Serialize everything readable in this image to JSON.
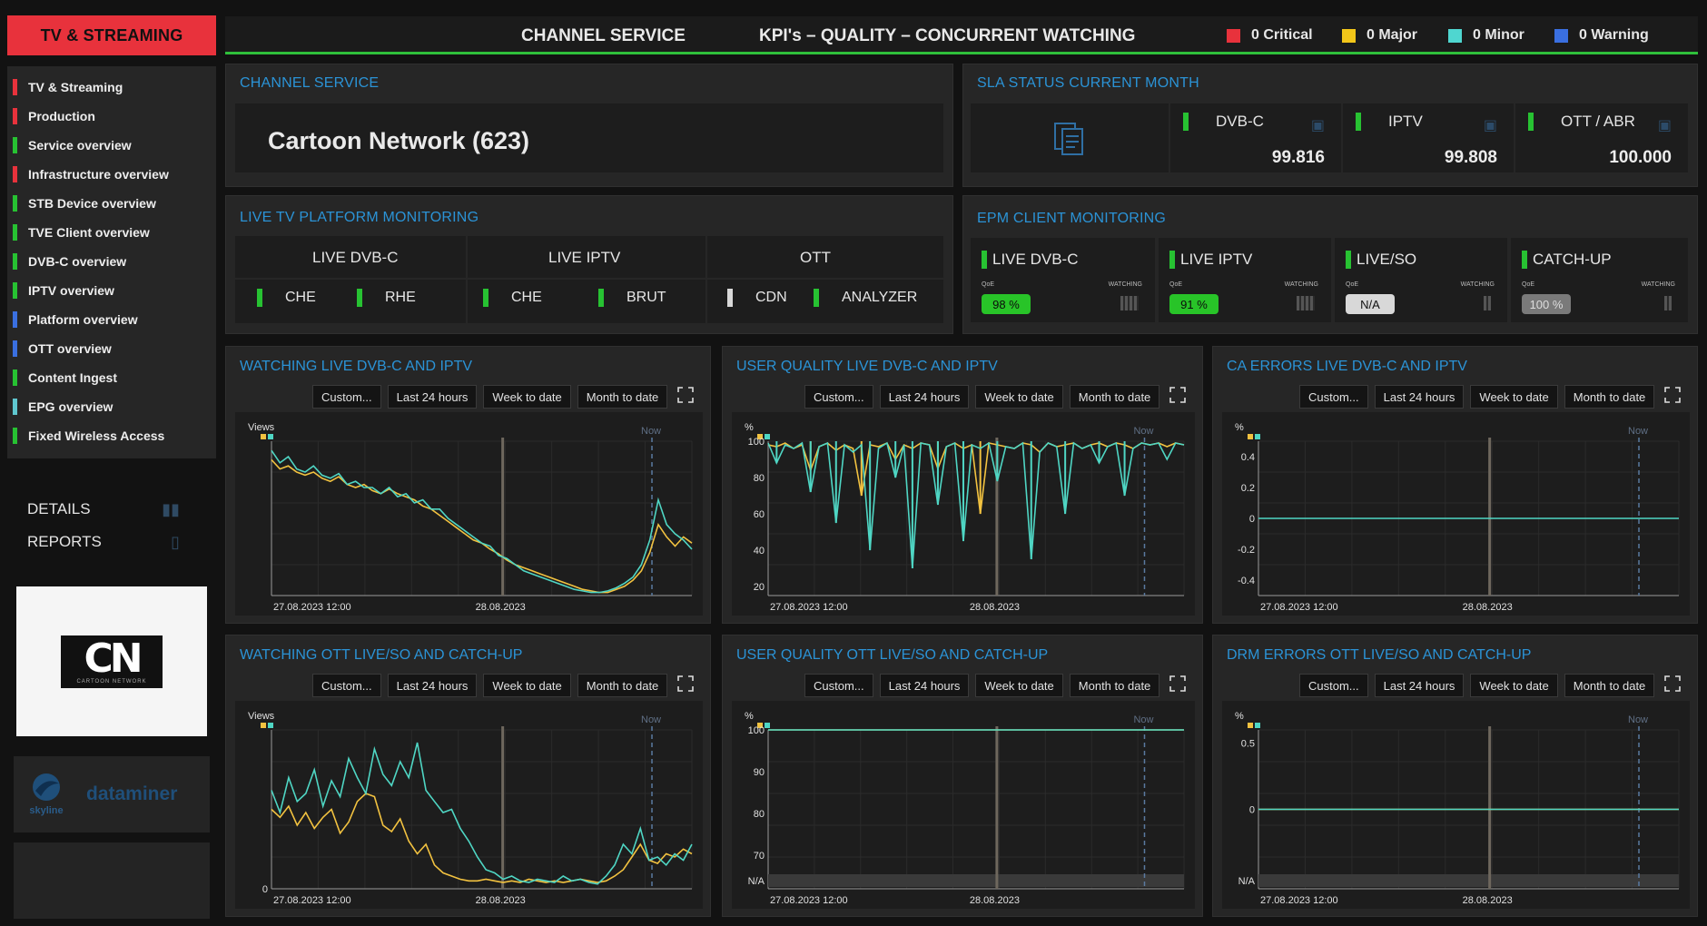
{
  "sidebar": {
    "header": "TV & STREAMING",
    "items": [
      {
        "label": "TV & Streaming",
        "color": "#e8323c"
      },
      {
        "label": "Production",
        "color": "#e8323c"
      },
      {
        "label": "Service overview",
        "color": "#27c232"
      },
      {
        "label": "Infrastructure overview",
        "color": "#e8323c"
      },
      {
        "label": "STB Device overview",
        "color": "#27c232"
      },
      {
        "label": "TVE Client overview",
        "color": "#27c232"
      },
      {
        "label": "DVB-C overview",
        "color": "#27c232"
      },
      {
        "label": "IPTV overview",
        "color": "#27c232"
      },
      {
        "label": "Platform overview",
        "color": "#3a6fe0"
      },
      {
        "label": "OTT overview",
        "color": "#3a6fe0"
      },
      {
        "label": "Content Ingest",
        "color": "#27c232"
      },
      {
        "label": "EPG overview",
        "color": "#5fc7cf"
      },
      {
        "label": "Fixed Wireless Access",
        "color": "#27c232"
      }
    ],
    "links": {
      "details": "DETAILS",
      "reports": "REPORTS"
    },
    "logo_text": "CN",
    "logo_sub": "CARTOON NETWORK",
    "brand": {
      "vendor": "skyline",
      "product": "dataminer"
    }
  },
  "topbar": {
    "title1": "CHANNEL SERVICE",
    "title2": "KPI's – QUALITY – CONCURRENT WATCHING",
    "alarms": [
      {
        "label": "0 Critical",
        "color": "#e8323c"
      },
      {
        "label": "0 Major",
        "color": "#f2c619"
      },
      {
        "label": "0 Minor",
        "color": "#4fd6d0"
      },
      {
        "label": "0 Warning",
        "color": "#3a6fe0"
      }
    ]
  },
  "channel_service": {
    "title": "CHANNEL SERVICE",
    "name": "Cartoon Network (623)"
  },
  "sla": {
    "title": "SLA STATUS CURRENT MONTH",
    "cols": [
      {
        "label": "DVB-C",
        "value": "99.816"
      },
      {
        "label": "IPTV",
        "value": "99.808"
      },
      {
        "label": "OTT / ABR",
        "value": "100.000"
      }
    ]
  },
  "live_tv": {
    "title": "LIVE TV PLATFORM MONITORING",
    "groups": [
      {
        "label": "LIVE DVB-C",
        "items": [
          {
            "label": "CHE",
            "color": "#27c232"
          },
          {
            "label": "RHE",
            "color": "#27c232"
          }
        ]
      },
      {
        "label": "LIVE IPTV",
        "items": [
          {
            "label": "CHE",
            "color": "#27c232"
          },
          {
            "label": "BRUT",
            "color": "#27c232"
          }
        ]
      },
      {
        "label": "OTT",
        "items": [
          {
            "label": "CDN",
            "color": "#d8d8d8"
          },
          {
            "label": "ANALYZER",
            "color": "#27c232"
          }
        ]
      }
    ]
  },
  "epm": {
    "title": "EPM CLIENT MONITORING",
    "qoe_label": "QoE",
    "watching_label": "WATCHING",
    "cells": [
      {
        "label": "LIVE DVB-C",
        "qoe": "98 %",
        "pill_bg": "#28c428",
        "pill_fg": "#0c0c0c"
      },
      {
        "label": "LIVE IPTV",
        "qoe": "91 %",
        "pill_bg": "#28c428",
        "pill_fg": "#0c0c0c"
      },
      {
        "label": "LIVE/SO",
        "qoe": "N/A",
        "pill_bg": "#d8d8d8",
        "pill_fg": "#111111"
      },
      {
        "label": "CATCH-UP",
        "qoe": "100 %",
        "pill_bg": "#7a7a7a",
        "pill_fg": "#dddddd"
      }
    ]
  },
  "buttons": [
    "Custom...",
    "Last 24 hours",
    "Week to date",
    "Month to date"
  ],
  "now_label": "Now",
  "chart_data": [
    {
      "title": "WATCHING LIVE DVB-C AND IPTV",
      "type": "line",
      "ylabel": "Views",
      "ylim": [
        0,
        100
      ],
      "yticks": [],
      "x_labels": [
        "27.08.2023 12:00",
        "28.08.2023"
      ],
      "series": [
        {
          "color": "#f2c240",
          "values": [
            88,
            82,
            84,
            80,
            78,
            80,
            76,
            74,
            77,
            72,
            70,
            72,
            68,
            66,
            69,
            66,
            64,
            62,
            58,
            56,
            52,
            48,
            44,
            40,
            36,
            34,
            30,
            27,
            23,
            20,
            18,
            16,
            14,
            12,
            10,
            8,
            6,
            4,
            3,
            2,
            2,
            4,
            6,
            10,
            16,
            28,
            46,
            38,
            32,
            38,
            34
          ]
        },
        {
          "color": "#4fd6c4",
          "values": [
            94,
            86,
            90,
            82,
            80,
            84,
            78,
            76,
            79,
            72,
            74,
            70,
            70,
            66,
            70,
            64,
            66,
            60,
            62,
            56,
            56,
            50,
            46,
            42,
            38,
            34,
            32,
            26,
            24,
            20,
            16,
            14,
            12,
            10,
            8,
            6,
            4,
            3,
            2,
            2,
            3,
            5,
            8,
            12,
            20,
            36,
            62,
            46,
            40,
            36,
            30
          ]
        }
      ]
    },
    {
      "title": "USER QUALITY LIVE DVB-C AND IPTV",
      "type": "line",
      "ylabel": "%",
      "ylim": [
        15,
        100
      ],
      "yticks": [
        100,
        80,
        60,
        40,
        20
      ],
      "x_labels": [
        "27.08.2023 12:00",
        "28.08.2023"
      ],
      "series": [
        {
          "color": "#f2c240",
          "values": [
            98,
            97,
            99,
            96,
            98,
            84,
            97,
            99,
            95,
            98,
            96,
            70,
            98,
            97,
            99,
            90,
            98,
            96,
            99,
            98,
            85,
            97,
            99,
            96,
            98,
            60,
            99,
            98,
            97,
            96,
            99,
            98,
            94,
            99,
            97,
            98,
            99,
            96,
            98,
            99,
            97,
            99,
            98,
            96,
            99,
            98,
            99,
            97,
            99,
            98
          ]
        },
        {
          "color": "#4fd6c4",
          "values": [
            99,
            88,
            98,
            96,
            99,
            72,
            97,
            99,
            55,
            98,
            94,
            98,
            40,
            96,
            99,
            80,
            98,
            30,
            99,
            98,
            65,
            97,
            99,
            45,
            98,
            96,
            99,
            78,
            97,
            96,
            99,
            35,
            94,
            99,
            97,
            60,
            99,
            96,
            98,
            88,
            97,
            99,
            70,
            96,
            99,
            98,
            99,
            90,
            99,
            98
          ]
        }
      ]
    },
    {
      "title": "CA ERRORS LIVE DVB-C AND IPTV",
      "type": "line",
      "ylabel": "%",
      "ylim": [
        -0.5,
        0.5
      ],
      "yticks": [
        0.4,
        0.2,
        0,
        -0.2,
        -0.4
      ],
      "x_labels": [
        "27.08.2023 12:00",
        "28.08.2023"
      ],
      "series": [
        {
          "color": "#4fd6c4",
          "values": [
            0,
            0,
            0,
            0,
            0,
            0,
            0,
            0,
            0,
            0,
            0,
            0,
            0,
            0,
            0,
            0,
            0,
            0,
            0,
            0,
            0,
            0,
            0,
            0,
            0,
            0,
            0,
            0,
            0,
            0,
            0,
            0,
            0,
            0,
            0,
            0,
            0,
            0,
            0,
            0,
            0,
            0,
            0,
            0,
            0,
            0,
            0,
            0,
            0,
            0
          ]
        }
      ]
    },
    {
      "title": "WATCHING OTT LIVE/SO AND CATCH-UP",
      "type": "line",
      "ylabel": "Views",
      "ylim": [
        0,
        100
      ],
      "yticks": [
        0
      ],
      "x_labels": [
        "27.08.2023 12:00",
        "28.08.2023"
      ],
      "series": [
        {
          "color": "#f2c240",
          "values": [
            50,
            45,
            52,
            40,
            48,
            38,
            45,
            50,
            35,
            42,
            55,
            60,
            58,
            40,
            36,
            44,
            30,
            22,
            28,
            15,
            10,
            8,
            6,
            5,
            5,
            6,
            5,
            4,
            5,
            4,
            6,
            5,
            4,
            5,
            4,
            5,
            6,
            5,
            4,
            5,
            8,
            12,
            20,
            28,
            18,
            16,
            22,
            20,
            25,
            22
          ]
        },
        {
          "color": "#4fd6c4",
          "values": [
            62,
            48,
            70,
            55,
            60,
            75,
            52,
            68,
            58,
            82,
            70,
            60,
            88,
            72,
            65,
            80,
            70,
            92,
            62,
            55,
            48,
            50,
            38,
            30,
            20,
            12,
            10,
            6,
            8,
            5,
            4,
            6,
            5,
            4,
            8,
            5,
            6,
            4,
            3,
            8,
            15,
            28,
            22,
            38,
            18,
            20,
            15,
            22,
            18,
            28
          ]
        }
      ]
    },
    {
      "title": "USER QUALITY OTT LIVE/SO AND CATCH-UP",
      "type": "line",
      "ylabel": "%",
      "ylim": [
        62,
        100
      ],
      "yticks": [
        100,
        90,
        80,
        70
      ],
      "x_labels": [
        "27.08.2023 12:00",
        "28.08.2023"
      ],
      "series": [
        {
          "color": "#f2c240",
          "values": [
            100,
            100,
            100,
            100,
            100,
            100,
            100,
            100,
            100,
            100,
            100,
            100,
            100,
            100,
            100,
            100,
            100,
            100,
            100,
            100,
            100,
            100,
            100,
            100,
            100,
            100,
            100,
            100,
            100,
            100,
            100,
            100,
            100,
            100,
            100,
            100,
            100,
            100,
            100,
            100,
            100,
            100,
            100,
            100,
            100,
            100,
            100,
            100,
            100,
            100
          ]
        },
        {
          "color": "#4fd6c4",
          "values": [
            100,
            100,
            100,
            100,
            100,
            100,
            100,
            100,
            100,
            100,
            100,
            100,
            100,
            100,
            100,
            100,
            100,
            100,
            100,
            100,
            100,
            100,
            100,
            100,
            100,
            100,
            100,
            100,
            100,
            100,
            100,
            100,
            100,
            100,
            100,
            100,
            100,
            100,
            100,
            100,
            100,
            100,
            100,
            100,
            100,
            100,
            100,
            100,
            100,
            100
          ]
        }
      ]
    },
    {
      "title": "DRM ERRORS OTT LIVE/SO AND CATCH-UP",
      "type": "line",
      "ylabel": "%",
      "ylim": [
        -0.6,
        0.6
      ],
      "yticks": [
        0.5,
        0
      ],
      "x_labels": [
        "27.08.2023 12:00",
        "28.08.2023"
      ],
      "series": [
        {
          "color": "#f2c240",
          "values": [
            0,
            0,
            0,
            0,
            0,
            0,
            0,
            0,
            0,
            0,
            0,
            0,
            0,
            0,
            0,
            0,
            0,
            0,
            0,
            0,
            0,
            0,
            0,
            0,
            0,
            0,
            0,
            0,
            0,
            0,
            0,
            0,
            0,
            0,
            0,
            0,
            0,
            0,
            0,
            0,
            0,
            0,
            0,
            0,
            0,
            0,
            0,
            0,
            0,
            0
          ]
        },
        {
          "color": "#4fd6c4",
          "values": [
            0,
            0,
            0,
            0,
            0,
            0,
            0,
            0,
            0,
            0,
            0,
            0,
            0,
            0,
            0,
            0,
            0,
            0,
            0,
            0,
            0,
            0,
            0,
            0,
            0,
            0,
            0,
            0,
            0,
            0,
            0,
            0,
            0,
            0,
            0,
            0,
            0,
            0,
            0,
            0,
            0,
            0,
            0,
            0,
            0,
            0,
            0,
            0,
            0,
            0
          ]
        }
      ]
    }
  ]
}
